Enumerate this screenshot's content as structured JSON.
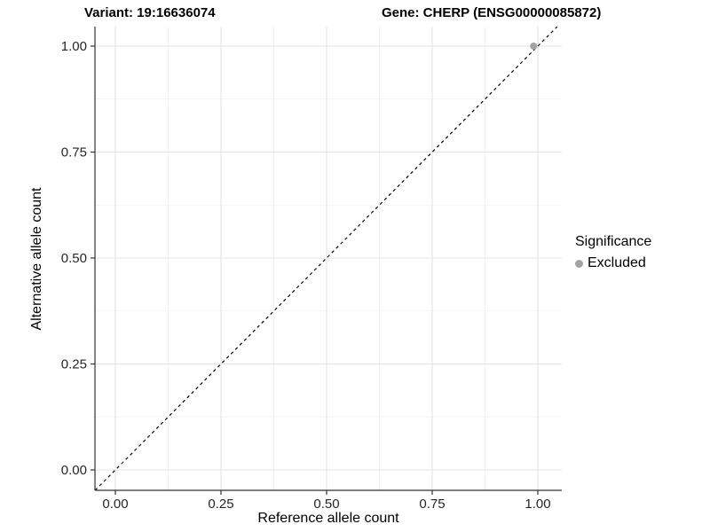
{
  "titles": {
    "variant": "Variant: 19:16636074",
    "gene": "Gene: CHERP (ENSG00000085872)"
  },
  "chart_data": {
    "type": "scatter",
    "title": "Variant: 19:16636074          Gene: CHERP (ENSG00000085872)",
    "xlabel": "Reference allele count",
    "ylabel": "Alternative allele count",
    "xlim": [
      -0.05,
      1.05
    ],
    "ylim": [
      -0.05,
      1.05
    ],
    "x_major_ticks": [
      0,
      0.25,
      0.5,
      0.75,
      1.0
    ],
    "y_major_ticks": [
      0,
      0.25,
      0.5,
      0.75,
      1.0
    ],
    "x_tick_labels": [
      "0.00",
      "0.25",
      "0.50",
      "0.75",
      "1.00"
    ],
    "y_tick_labels": [
      "0.00",
      "0.25",
      "0.50",
      "0.75",
      "1.00"
    ],
    "minor_ticks": [
      0.125,
      0.375,
      0.625,
      0.875
    ],
    "grid": true,
    "reference_line": {
      "type": "identity",
      "slope": 1,
      "intercept": 0,
      "style": "dashed",
      "color": "#000000"
    },
    "series": [
      {
        "name": "Excluded",
        "color": "#A3A3A3",
        "points": [
          {
            "x": 0.99,
            "y": 1.0
          }
        ]
      }
    ],
    "legend": {
      "title": "Significance",
      "position": "right",
      "entries": [
        {
          "label": "Excluded",
          "color": "#A3A3A3",
          "marker": "circle"
        }
      ]
    }
  },
  "colors": {
    "background": "#FFFFFF",
    "grid_major": "#E3E3E3",
    "grid_minor": "#F0F0F0",
    "axis_line": "#333333",
    "tick_text": "#262626",
    "point": "#A3A3A3"
  }
}
